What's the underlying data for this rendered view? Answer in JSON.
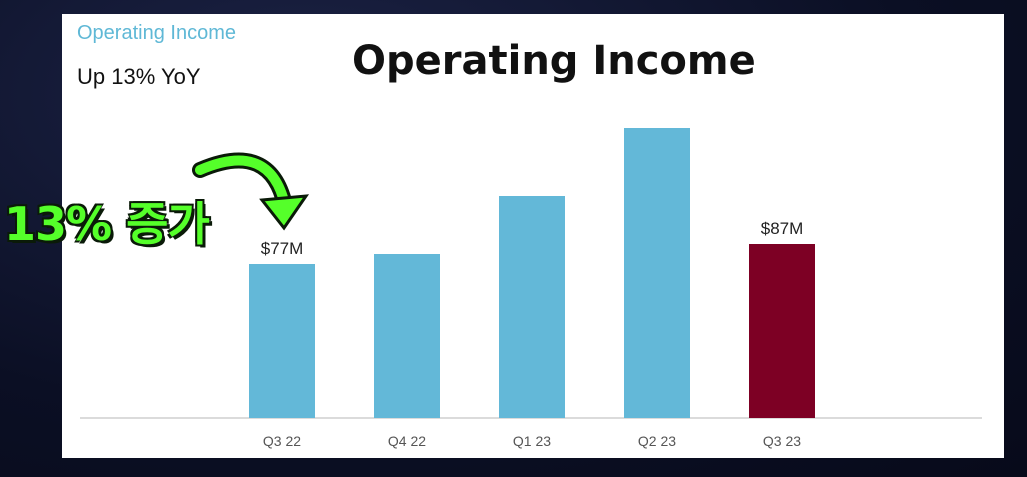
{
  "slide": {
    "small_title": "Operating Income",
    "subtitle": "Up 13% YoY",
    "big_title": "Operating Income"
  },
  "callout": {
    "text": "13% 증가"
  },
  "colors": {
    "bar": "#63b8d8",
    "highlight": "#7d0024",
    "accent": "#5fb8d6",
    "callout": "#55ff2a"
  },
  "chart_data": {
    "type": "bar",
    "title": "Operating Income",
    "subtitle": "Up 13% YoY",
    "categories": [
      "Q3 22",
      "Q4 22",
      "Q1 23",
      "Q2 23",
      "Q3 23"
    ],
    "values": [
      77,
      82,
      111,
      145,
      87
    ],
    "data_labels": [
      "$77M",
      "",
      "",
      "",
      "$87M"
    ],
    "highlight_index": 4,
    "unit": "$M",
    "ylim": [
      0,
      185
    ],
    "grid": false
  }
}
